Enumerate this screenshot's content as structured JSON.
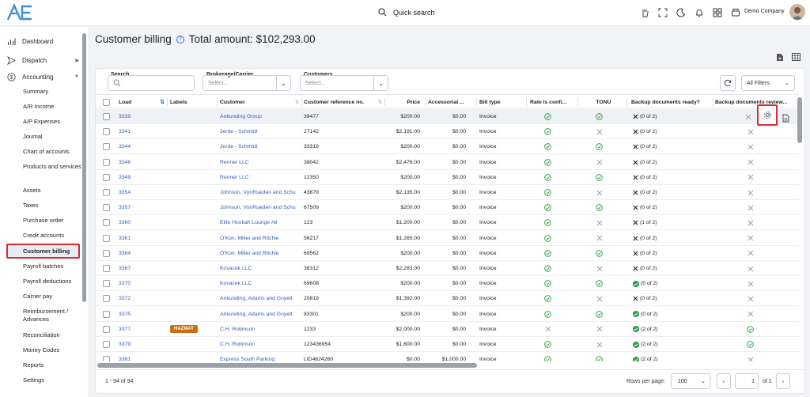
{
  "topbar": {
    "quick_search": "Quick search",
    "company": "Demo Company",
    "icons": [
      "hand-icon",
      "fullscreen-icon",
      "moon-icon",
      "bell-icon",
      "apps-grid-icon",
      "print-icon"
    ]
  },
  "sidebar": {
    "main": [
      {
        "label": "Dashboard",
        "icon": "chart-bars-icon",
        "arrow": ""
      },
      {
        "label": "Dispatch",
        "icon": "send-icon",
        "arrow": "▶"
      },
      {
        "label": "Accounting",
        "icon": "dollar-icon",
        "arrow": "▼"
      }
    ],
    "sub": [
      "Summary",
      "A/R Income",
      "A/P Expenses",
      "Journal",
      "Chart of accounts",
      "Products and services",
      "Assets",
      "Taxes",
      "Purchase order",
      "Credit accounts",
      "Customer billing",
      "Payroll batches",
      "Payroll deductions",
      "Carrier pay",
      "Reimbursement / Advances",
      "Reconciliation",
      "Money Codes",
      "Reports",
      "Settings"
    ],
    "active": "Customer billing"
  },
  "header": {
    "title": "Customer billing",
    "help": "?",
    "total": "Total amount: $102,293.00"
  },
  "filters": {
    "search_label": "Search",
    "brokerage_label": "Brokerage/Carrier",
    "brokerage_placeholder": "Select...",
    "customers_label": "Customers",
    "customers_placeholder": "Select...",
    "all_filters": "All Filters"
  },
  "columns": [
    "Load",
    "Labels",
    "Customer",
    "Customer reference no.",
    "Price",
    "Accessorial ...",
    "Bill type",
    "Rate is confi...",
    "TONU",
    "Backup documents ready?",
    "Backup documents review..."
  ],
  "rows": [
    {
      "load": "3339",
      "label": "",
      "customer": "Ankunding Group",
      "ref": "39477",
      "price": "$200.00",
      "acc": "$0.00",
      "bill": "Invoice",
      "rate": "ok",
      "tonu": "ok",
      "backup": "(0 of 2)",
      "backup_ok": false,
      "review": "x"
    },
    {
      "load": "3341",
      "label": "",
      "customer": "Jerde - Schmidt",
      "ref": "27142",
      "price": "$2,191.00",
      "acc": "$0.00",
      "bill": "Invoice",
      "rate": "ok",
      "tonu": "x",
      "backup": "(0 of 2)",
      "backup_ok": false,
      "review": "x"
    },
    {
      "load": "3344",
      "label": "",
      "customer": "Jerde - Schmidt",
      "ref": "33319",
      "price": "$200.00",
      "acc": "$0.00",
      "bill": "Invoice",
      "rate": "ok",
      "tonu": "ok",
      "backup": "(0 of 2)",
      "backup_ok": false,
      "review": "x"
    },
    {
      "load": "3346",
      "label": "",
      "customer": "Renner LLC",
      "ref": "38042",
      "price": "$2,476.00",
      "acc": "$0.00",
      "bill": "Invoice",
      "rate": "ok",
      "tonu": "x",
      "backup": "(0 of 2)",
      "backup_ok": false,
      "review": "x"
    },
    {
      "load": "3349",
      "label": "",
      "customer": "Renner LLC",
      "ref": "12350",
      "price": "$200.00",
      "acc": "$0.00",
      "bill": "Invoice",
      "rate": "ok",
      "tonu": "ok",
      "backup": "(0 of 2)",
      "backup_ok": false,
      "review": "x"
    },
    {
      "load": "3354",
      "label": "",
      "customer": "Johnson, VonRueden and Schu",
      "ref": "43679",
      "price": "$2,135.00",
      "acc": "$0.00",
      "bill": "Invoice",
      "rate": "ok",
      "tonu": "x",
      "backup": "(0 of 2)",
      "backup_ok": false,
      "review": "x"
    },
    {
      "load": "3357",
      "label": "",
      "customer": "Johnson, VonRueden and Schu",
      "ref": "67509",
      "price": "$200.00",
      "acc": "$0.00",
      "bill": "Invoice",
      "rate": "ok",
      "tonu": "ok",
      "backup": "(0 of 2)",
      "backup_ok": false,
      "review": "x"
    },
    {
      "load": "3360",
      "label": "",
      "customer": "Elite Hookah Lounge Atl",
      "ref": "123",
      "price": "$1,200.00",
      "acc": "$0.00",
      "bill": "Invoice",
      "rate": "ok",
      "tonu": "x",
      "backup": "(1 of 2)",
      "backup_ok": false,
      "review": "x"
    },
    {
      "load": "3361",
      "label": "",
      "customer": "O'Kon, Miller and Ritchie",
      "ref": "56217",
      "price": "$1,265.00",
      "acc": "$0.00",
      "bill": "Invoice",
      "rate": "ok",
      "tonu": "x",
      "backup": "(0 of 2)",
      "backup_ok": false,
      "review": "x"
    },
    {
      "load": "3364",
      "label": "",
      "customer": "O'Kon, Miller and Ritchie",
      "ref": "69562",
      "price": "$200.00",
      "acc": "$0.00",
      "bill": "Invoice",
      "rate": "ok",
      "tonu": "ok",
      "backup": "(0 of 2)",
      "backup_ok": false,
      "review": "x"
    },
    {
      "load": "3367",
      "label": "",
      "customer": "Kovacek LLC",
      "ref": "38312",
      "price": "$2,283.00",
      "acc": "$0.00",
      "bill": "Invoice",
      "rate": "ok",
      "tonu": "x",
      "backup": "(0 of 2)",
      "backup_ok": false,
      "review": "x"
    },
    {
      "load": "3370",
      "label": "",
      "customer": "Kovacek LLC",
      "ref": "69608",
      "price": "$200.00",
      "acc": "$0.00",
      "bill": "Invoice",
      "rate": "ok",
      "tonu": "ok",
      "backup": "(0 of 2)",
      "backup_ok": true,
      "review": "x"
    },
    {
      "load": "3372",
      "label": "",
      "customer": "Ankunding, Adams and Goyett",
      "ref": "20819",
      "price": "$1,392.00",
      "acc": "$0.00",
      "bill": "Invoice",
      "rate": "ok",
      "tonu": "x",
      "backup": "(0 of 2)",
      "backup_ok": false,
      "review": "x"
    },
    {
      "load": "3375",
      "label": "",
      "customer": "Ankunding, Adams and Goyett",
      "ref": "83301",
      "price": "$200.00",
      "acc": "$0.00",
      "bill": "Invoice",
      "rate": "ok",
      "tonu": "ok",
      "backup": "(0 of 2)",
      "backup_ok": true,
      "review": "x"
    },
    {
      "load": "3377",
      "label": "HAZMAT",
      "customer": "C.H. Robinson",
      "ref": "1233",
      "price": "$2,000.00",
      "acc": "$0.00",
      "bill": "Invoice",
      "rate": "x",
      "tonu": "x",
      "backup": "(2 of 2)",
      "backup_ok": true,
      "review": "ok"
    },
    {
      "load": "3379",
      "label": "",
      "customer": "C.H. Robinson",
      "ref": "123436954",
      "price": "$1,600.00",
      "acc": "$0.00",
      "bill": "Invoice",
      "rate": "ok",
      "tonu": "x",
      "backup": "(2 of 2)",
      "backup_ok": true,
      "review": "ok"
    },
    {
      "load": "3381",
      "label": "",
      "customer": "Express South Parking",
      "ref": "LID4624260",
      "price": "$0.00",
      "acc": "$1,000.00",
      "bill": "Invoice",
      "rate": "ok",
      "tonu": "ok",
      "backup": "(2 of 2)",
      "backup_ok": true,
      "review": "x"
    }
  ],
  "footer": {
    "count": "1 - 94 of 94",
    "rows_per_page_label": "Rows per page:",
    "rows_per_page": "100",
    "page": "1",
    "of_pages": "of 1"
  },
  "colors": {
    "accent": "#2f5fb8",
    "success": "#2e9b4b",
    "highlight": "#d32f2f",
    "tag": "#c76e10"
  }
}
